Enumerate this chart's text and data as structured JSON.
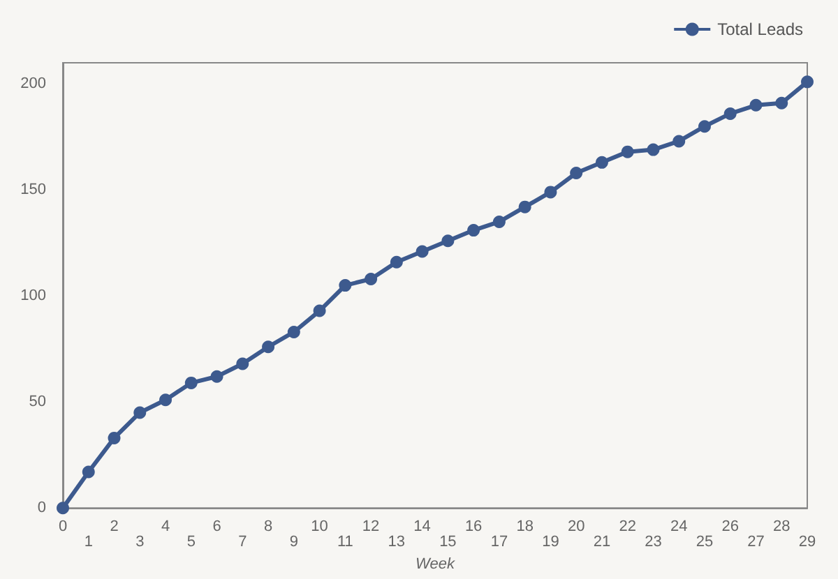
{
  "chart_data": {
    "type": "line",
    "xlabel": "Week",
    "categories": [
      "0",
      "1",
      "2",
      "3",
      "4",
      "5",
      "6",
      "7",
      "8",
      "9",
      "10",
      "11",
      "12",
      "13",
      "14",
      "15",
      "16",
      "17",
      "18",
      "19",
      "20",
      "21",
      "22",
      "23",
      "24",
      "25",
      "26",
      "27",
      "28",
      "29"
    ],
    "series": [
      {
        "name": "Total Leads",
        "color": "#3d5a8e",
        "values": [
          0,
          17,
          33,
          45,
          51,
          59,
          62,
          68,
          76,
          83,
          93,
          105,
          108,
          116,
          121,
          126,
          131,
          135,
          142,
          149,
          158,
          163,
          168,
          169,
          173,
          180,
          186,
          190,
          191,
          201
        ]
      }
    ],
    "ylim": [
      0,
      210
    ],
    "yticks": [
      0,
      50,
      100,
      150,
      200
    ],
    "grid": false,
    "legend": "top right",
    "marker": "circle",
    "line_style": "solid"
  }
}
